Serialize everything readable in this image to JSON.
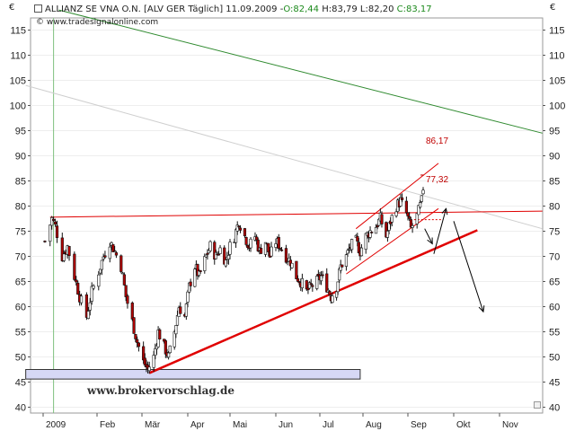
{
  "header": {
    "title": "ALLIANZ SE VNA O.N. [ALV GER  Täglich] 11.09.2009 - ",
    "o_label": "O:82,44",
    "hlc_label": "H:83,79 L:82,20",
    "c_label": "C:83,17",
    "source": "© www.tradesignalonline.com",
    "currency_left": "€",
    "currency_right": "€"
  },
  "watermark": "www.brokervorschlag.de",
  "colors": {
    "up": "#2a7a1c",
    "down": "#d40000",
    "green_line": "#2f8a2f",
    "red_line": "#e00000",
    "box_fill": "#d6d8f5"
  },
  "chart_data": {
    "type": "candlestick",
    "y_ticks": [
      40,
      45,
      50,
      55,
      60,
      65,
      70,
      75,
      80,
      85,
      90,
      95,
      100,
      105,
      110,
      115
    ],
    "x_ticks": [
      "2009",
      "Feb",
      "Mär",
      "Apr",
      "Mai",
      "Jun",
      "Jul",
      "Aug",
      "Sep",
      "Okt",
      "Nov"
    ],
    "ylim": [
      39.5,
      118
    ],
    "annotations": [
      {
        "text": "86,17",
        "value": 86.17
      },
      {
        "text": "77,32",
        "value": 77.32
      }
    ],
    "price_path": [
      [
        "2009-01-02",
        73
      ],
      [
        "2009-01-06",
        77.5
      ],
      [
        "2009-01-08",
        76
      ],
      [
        "2009-01-12",
        70
      ],
      [
        "2009-01-15",
        72
      ],
      [
        "2009-01-19",
        66
      ],
      [
        "2009-01-22",
        62
      ],
      [
        "2009-01-26",
        58
      ],
      [
        "2009-01-29",
        63
      ],
      [
        "2009-02-02",
        67
      ],
      [
        "2009-02-05",
        70
      ],
      [
        "2009-02-09",
        73
      ],
      [
        "2009-02-12",
        71
      ],
      [
        "2009-02-16",
        68
      ],
      [
        "2009-02-19",
        62
      ],
      [
        "2009-02-23",
        57
      ],
      [
        "2009-02-26",
        53
      ],
      [
        "2009-03-02",
        49
      ],
      [
        "2009-03-05",
        47.5
      ],
      [
        "2009-03-09",
        50
      ],
      [
        "2009-03-12",
        55
      ],
      [
        "2009-03-16",
        52
      ],
      [
        "2009-03-19",
        50
      ],
      [
        "2009-03-23",
        55
      ],
      [
        "2009-03-26",
        60
      ],
      [
        "2009-03-30",
        58
      ],
      [
        "2009-04-02",
        64
      ],
      [
        "2009-04-06",
        68
      ],
      [
        "2009-04-09",
        66
      ],
      [
        "2009-04-14",
        70
      ],
      [
        "2009-04-17",
        72
      ],
      [
        "2009-04-21",
        70
      ],
      [
        "2009-04-24",
        71.5
      ],
      [
        "2009-04-28",
        69
      ],
      [
        "2009-05-01",
        72
      ],
      [
        "2009-05-04",
        74
      ],
      [
        "2009-05-07",
        77
      ],
      [
        "2009-05-11",
        74
      ],
      [
        "2009-05-14",
        72
      ],
      [
        "2009-05-18",
        74
      ],
      [
        "2009-05-21",
        71
      ],
      [
        "2009-05-25",
        73
      ],
      [
        "2009-05-28",
        70
      ],
      [
        "2009-06-01",
        73
      ],
      [
        "2009-06-04",
        72
      ],
      [
        "2009-06-08",
        70
      ],
      [
        "2009-06-11",
        69
      ],
      [
        "2009-06-15",
        66
      ],
      [
        "2009-06-18",
        65
      ],
      [
        "2009-06-22",
        63
      ],
      [
        "2009-06-25",
        64
      ],
      [
        "2009-06-29",
        65
      ],
      [
        "2009-07-02",
        66
      ],
      [
        "2009-07-06",
        64
      ],
      [
        "2009-07-09",
        62
      ],
      [
        "2009-07-13",
        64
      ],
      [
        "2009-07-16",
        68
      ],
      [
        "2009-07-20",
        70
      ],
      [
        "2009-07-23",
        72
      ],
      [
        "2009-07-27",
        73
      ],
      [
        "2009-07-30",
        71
      ],
      [
        "2009-08-03",
        74
      ],
      [
        "2009-08-06",
        75
      ],
      [
        "2009-08-10",
        76
      ],
      [
        "2009-08-13",
        77.5
      ],
      [
        "2009-08-17",
        74
      ],
      [
        "2009-08-20",
        77
      ],
      [
        "2009-08-24",
        80
      ],
      [
        "2009-08-27",
        81
      ],
      [
        "2009-08-31",
        78.5
      ],
      [
        "2009-09-03",
        75.5
      ],
      [
        "2009-09-07",
        78
      ],
      [
        "2009-09-10",
        81
      ],
      [
        "2009-09-11",
        83.2
      ]
    ],
    "lines": [
      {
        "name": "green-trend",
        "points": [
          [
            "2009-01-10",
            119
          ],
          [
            "2009-11-30",
            94.5
          ]
        ]
      },
      {
        "name": "gray-trend",
        "points": [
          [
            "2008-12-22",
            104
          ],
          [
            "2009-11-30",
            75.5
          ]
        ]
      },
      {
        "name": "red-resistance",
        "points": [
          [
            "2009-01-05",
            77.8
          ],
          [
            "2009-11-30",
            79
          ]
        ]
      },
      {
        "name": "red-support",
        "points": [
          [
            "2009-03-06",
            46.8
          ],
          [
            "2009-10-17",
            75.2
          ]
        ]
      },
      {
        "name": "channel-upper",
        "points": [
          [
            "2009-07-27",
            75.5
          ],
          [
            "2009-09-21",
            88.5
          ]
        ]
      },
      {
        "name": "channel-lower",
        "points": [
          [
            "2009-07-20",
            66.5
          ],
          [
            "2009-09-21",
            79.5
          ]
        ]
      },
      {
        "name": "dashed-level",
        "points": [
          [
            "2009-09-05",
            77.3
          ],
          [
            "2009-09-24",
            77.3
          ]
        ]
      }
    ],
    "arrows": [
      {
        "name": "arrow-down-1",
        "from": [
          "2009-09-12",
          75.5
        ],
        "to": [
          "2009-09-17",
          72.5
        ]
      },
      {
        "name": "arrow-up",
        "from": [
          "2009-09-18",
          70.5
        ],
        "to": [
          "2009-09-26",
          79.5
        ]
      },
      {
        "name": "arrow-down-2",
        "from": [
          "2009-10-01",
          77
        ],
        "to": [
          "2009-10-21",
          59
        ]
      }
    ],
    "box": {
      "from": [
        "2008-12-22",
        47.5
      ],
      "to": [
        "2009-07-30",
        45.6
      ]
    },
    "vertical_marker": "2009-01-07",
    "price_marker": {
      "date": "2009-09-11",
      "value": 83.17
    }
  }
}
